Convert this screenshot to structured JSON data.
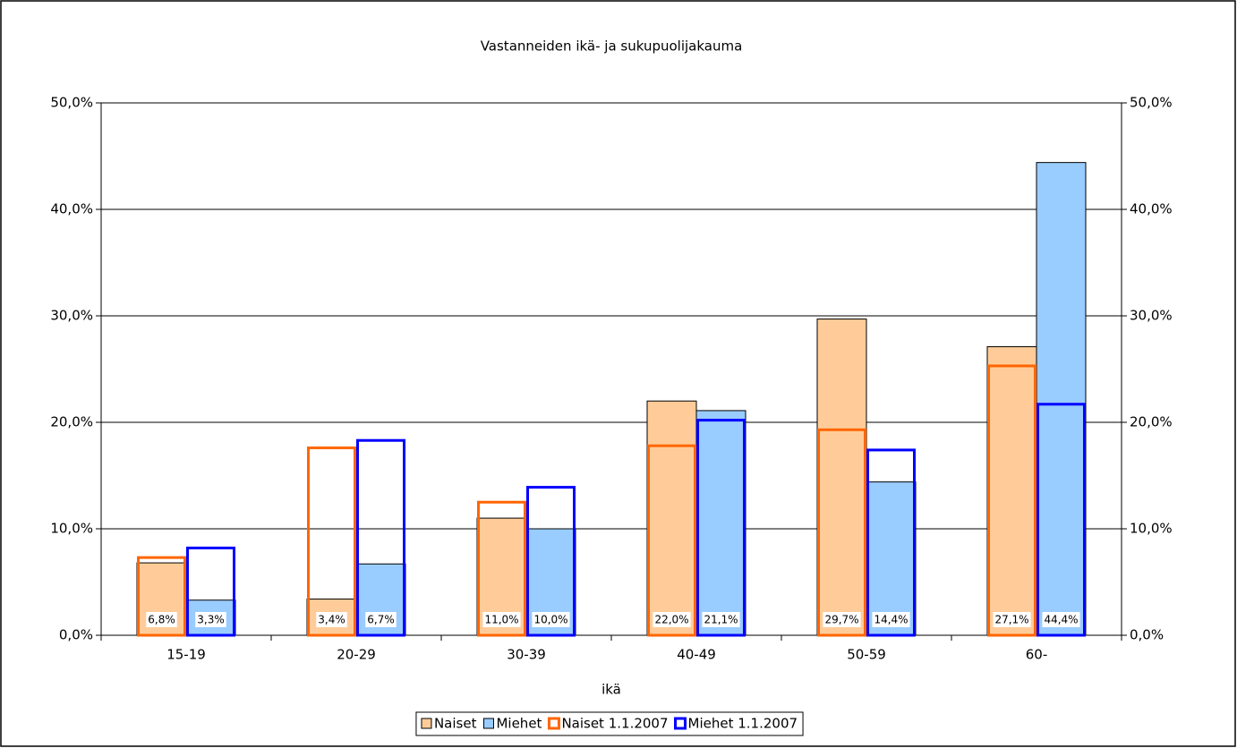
{
  "chart_data": {
    "type": "bar",
    "title": "Vastanneiden ikä- ja sukupuolijakauma",
    "x_label": "ikä",
    "categories": [
      "15-19",
      "20-29",
      "30-39",
      "40-49",
      "50-59",
      "60-"
    ],
    "series": [
      {
        "name": "Naiset",
        "color": "#FFCC99",
        "values": [
          6.8,
          3.4,
          11.0,
          22.0,
          29.7,
          27.1
        ],
        "value_labels": [
          "6,8%",
          "3,4%",
          "11,0%",
          "22,0%",
          "29,7%",
          "27,1%"
        ]
      },
      {
        "name": "Miehet",
        "color": "#99CCFF",
        "values": [
          3.3,
          6.7,
          10.0,
          21.1,
          14.4,
          44.4
        ],
        "value_labels": [
          "3,3%",
          "6,7%",
          "10,0%",
          "21,1%",
          "14,4%",
          "44,4%"
        ]
      },
      {
        "name": "Naiset 1.1.2007",
        "color": "#FF6600",
        "outline": true,
        "values": [
          7.3,
          17.6,
          12.5,
          17.8,
          19.3,
          25.3
        ]
      },
      {
        "name": "Miehet 1.1.2007",
        "color": "#0000FF",
        "outline": true,
        "values": [
          8.2,
          18.3,
          13.9,
          20.2,
          17.4,
          21.7
        ]
      }
    ],
    "ylim": [
      0,
      50
    ],
    "yticks": [
      {
        "value": 0,
        "label": "0,0%"
      },
      {
        "value": 10,
        "label": "10,0%"
      },
      {
        "value": 20,
        "label": "20,0%"
      },
      {
        "value": 30,
        "label": "30,0%"
      },
      {
        "value": 40,
        "label": "40,0%"
      },
      {
        "value": 50,
        "label": "50,0%"
      }
    ],
    "y2lim": [
      0,
      50
    ],
    "y2ticks": [
      {
        "value": 0,
        "label": "0,0%"
      },
      {
        "value": 10,
        "label": "10,0%"
      },
      {
        "value": 20,
        "label": "20,0%"
      },
      {
        "value": 30,
        "label": "30,0%"
      },
      {
        "value": 40,
        "label": "40,0%"
      },
      {
        "value": 50,
        "label": "50,0%"
      }
    ],
    "grid": true,
    "legend": "bottom"
  }
}
